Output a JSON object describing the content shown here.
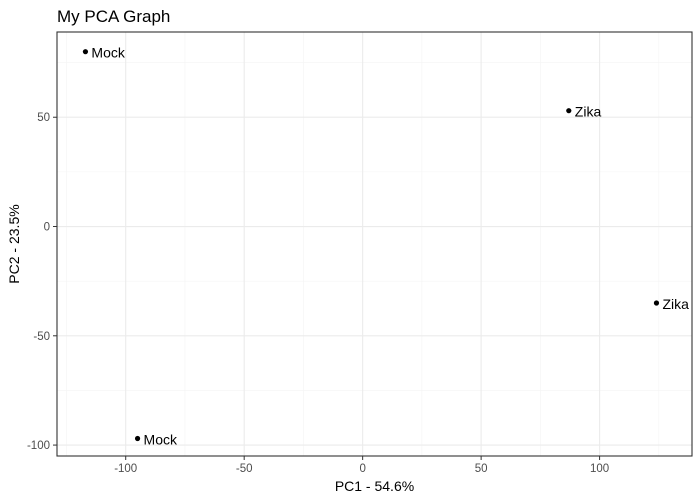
{
  "chart_data": {
    "type": "scatter",
    "title": "My PCA Graph",
    "xlabel": "PC1 - 54.6%",
    "ylabel": "PC2 - 23.5%",
    "xlim": [
      -129,
      139
    ],
    "ylim": [
      -105,
      89
    ],
    "x_ticks": [
      -100,
      -50,
      0,
      50,
      100
    ],
    "y_ticks": [
      -100,
      -50,
      0,
      50
    ],
    "grid": true,
    "points": [
      {
        "x": -117,
        "y": 80,
        "label": "Mock"
      },
      {
        "x": -95,
        "y": -97,
        "label": "Mock"
      },
      {
        "x": 87,
        "y": 53,
        "label": "Zika"
      },
      {
        "x": 124,
        "y": -35,
        "label": "Zika"
      }
    ],
    "colors": {
      "panel_border": "#333333",
      "grid_major": "#ebebeb",
      "grid_minor": "#f4f4f4",
      "point": "#000000",
      "tick_text": "#4d4d4d"
    }
  }
}
